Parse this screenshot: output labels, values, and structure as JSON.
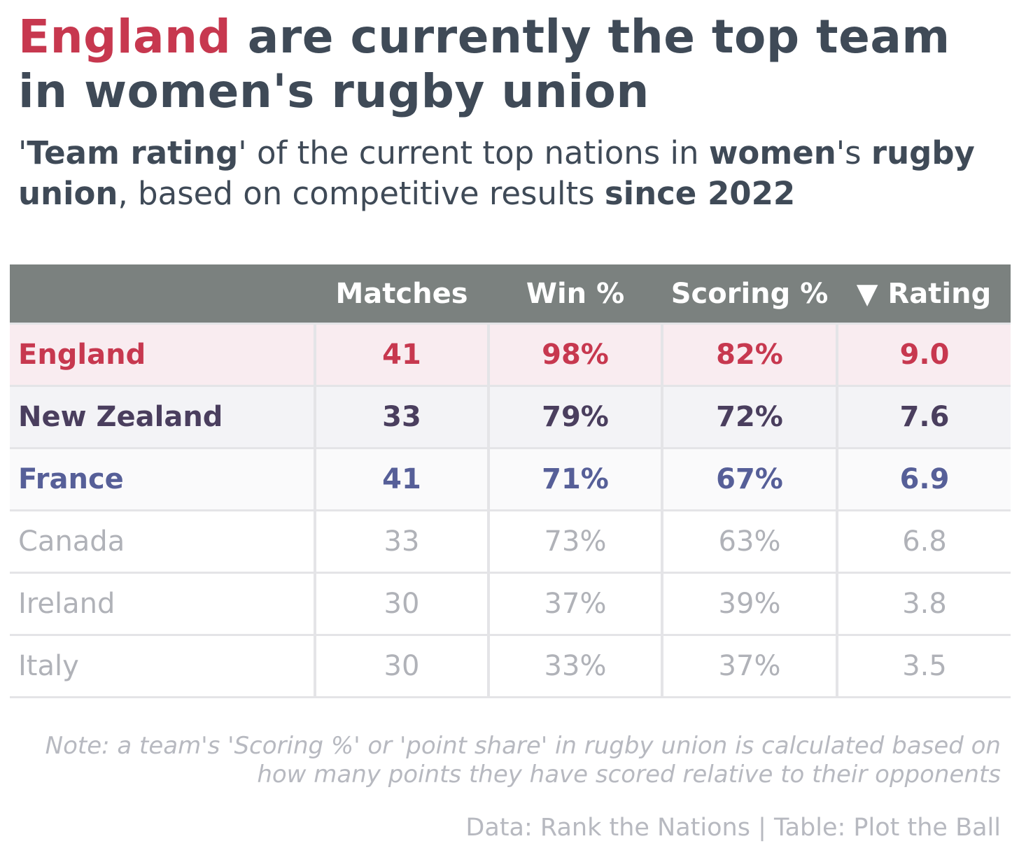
{
  "title": {
    "highlight": "England",
    "rest": " are currently the top team in women's rugby union"
  },
  "subtitle": {
    "p1": "'",
    "b1": "Team rating",
    "p2": "' of the current top nations in ",
    "b2": "women",
    "p3": "'s ",
    "b3": "rugby union",
    "p4": ", based on competitive results ",
    "b4": "since 2022"
  },
  "colors": {
    "england": "#c7384f",
    "england_bg": "#f9ecf0",
    "new_zealand": "#4a3e5e",
    "new_zealand_bg": "#f3f3f6",
    "france": "#565f98",
    "france_bg": "#fafafb",
    "muted": "#b0b2b8",
    "header_bg": "#7b817f"
  },
  "chart_data": {
    "type": "table",
    "columns": [
      "",
      "Matches",
      "Win %",
      "Scoring %",
      "▼ Rating"
    ],
    "sort_column": "Rating",
    "sort_order": "descending",
    "rows": [
      {
        "team": "England",
        "matches": "41",
        "win": "98%",
        "scoring": "82%",
        "rating": "9.0",
        "style": "england"
      },
      {
        "team": "New Zealand",
        "matches": "33",
        "win": "79%",
        "scoring": "72%",
        "rating": "7.6",
        "style": "new_zealand"
      },
      {
        "team": "France",
        "matches": "41",
        "win": "71%",
        "scoring": "67%",
        "rating": "6.9",
        "style": "france"
      },
      {
        "team": "Canada",
        "matches": "33",
        "win": "73%",
        "scoring": "63%",
        "rating": "6.8",
        "style": "muted"
      },
      {
        "team": "Ireland",
        "matches": "30",
        "win": "37%",
        "scoring": "39%",
        "rating": "3.8",
        "style": "muted"
      },
      {
        "team": "Italy",
        "matches": "30",
        "win": "33%",
        "scoring": "37%",
        "rating": "3.5",
        "style": "muted"
      }
    ]
  },
  "note": "Note: a team's 'Scoring %' or 'point share' in rugby union is calculated based on how many points they have scored relative to their opponents",
  "source": "Data: Rank the Nations | Table: Plot the Ball"
}
